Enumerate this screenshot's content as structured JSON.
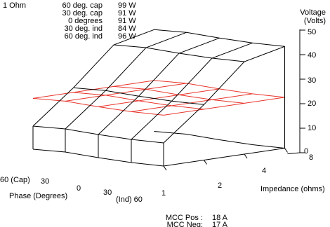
{
  "chart_data": {
    "type": "3d-surface",
    "title": "",
    "legend_block": {
      "heading": "1 Ohm",
      "entries": [
        {
          "label": "60 deg. cap",
          "value": "99 W"
        },
        {
          "label": "30 deg. cap",
          "value": "91 W"
        },
        {
          "label": "0 degrees",
          "value": "91 W"
        },
        {
          "label": "30 deg. ind",
          "value": "84 W"
        },
        {
          "label": "60 deg. ind",
          "value": "96 W"
        }
      ]
    },
    "z_axis": {
      "label_line1": "Voltage",
      "label_line2": "(Volts)",
      "ticks": [
        "50",
        "40",
        "30",
        "20",
        "10",
        "0"
      ]
    },
    "x_axis": {
      "label": "Phase (Degrees)",
      "ticks": [
        "60 (Cap)",
        "30",
        "0",
        "30",
        "(Ind) 60"
      ]
    },
    "y_axis": {
      "label": "Impedance (ohms)",
      "ticks": [
        "1",
        "2",
        "4",
        "8"
      ]
    },
    "phase": [
      -60,
      -30,
      0,
      30,
      60
    ],
    "impedance": [
      1,
      2,
      4,
      8
    ],
    "voltage_surface": [
      [
        10,
        24,
        40,
        44
      ],
      [
        10,
        24,
        40,
        44
      ],
      [
        10,
        24,
        40,
        44
      ],
      [
        10,
        24,
        40,
        44
      ],
      [
        10,
        24,
        40,
        44
      ]
    ],
    "reference_plane_voltage": 22,
    "reference_plane_color": "#e8332a",
    "surface_color": "#000000",
    "footer": [
      {
        "label": "MCC Pos :",
        "value": "18 A"
      },
      {
        "label": "MCC Neg:",
        "value": "17 A"
      }
    ]
  }
}
